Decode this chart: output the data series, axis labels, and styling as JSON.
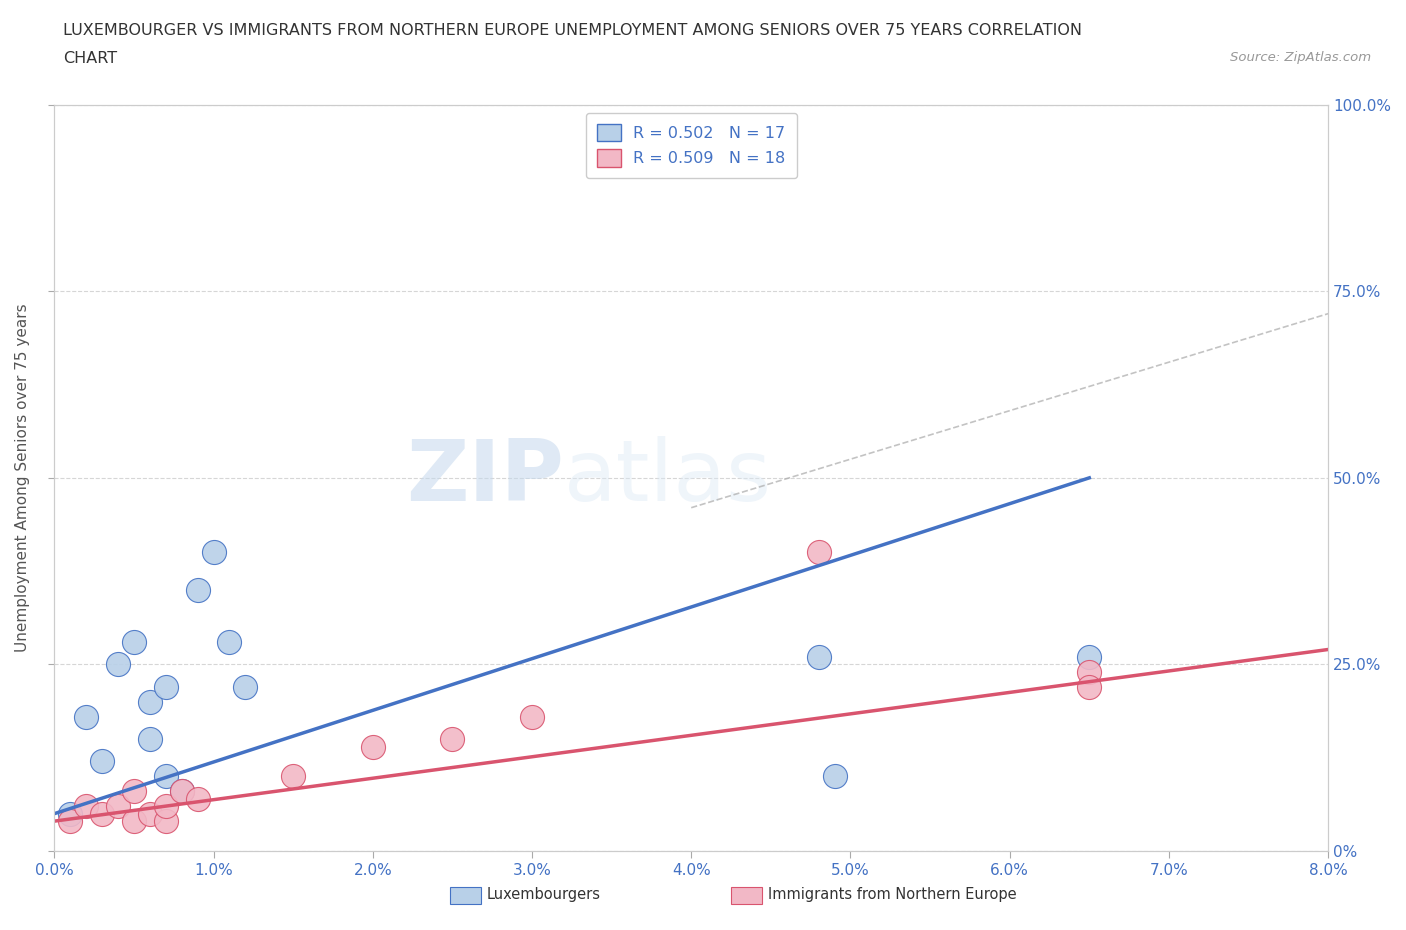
{
  "title_line1": "LUXEMBOURGER VS IMMIGRANTS FROM NORTHERN EUROPE UNEMPLOYMENT AMONG SENIORS OVER 75 YEARS CORRELATION",
  "title_line2": "CHART",
  "source_text": "Source: ZipAtlas.com",
  "ylabel": "Unemployment Among Seniors over 75 years",
  "xlim": [
    0.0,
    0.08
  ],
  "ylim": [
    0.0,
    1.0
  ],
  "xtick_labels": [
    "0.0%",
    "1.0%",
    "2.0%",
    "3.0%",
    "4.0%",
    "5.0%",
    "6.0%",
    "7.0%",
    "8.0%"
  ],
  "xtick_values": [
    0.0,
    0.01,
    0.02,
    0.03,
    0.04,
    0.05,
    0.06,
    0.07,
    0.08
  ],
  "ytick_right_labels": [
    "0%",
    "25.0%",
    "50.0%",
    "75.0%",
    "100.0%"
  ],
  "ytick_values": [
    0.0,
    0.25,
    0.5,
    0.75,
    1.0
  ],
  "legend_r1": "R = 0.502",
  "legend_n1": "N = 17",
  "legend_r2": "R = 0.509",
  "legend_n2": "N = 18",
  "color_blue_fill": "#b8d0e8",
  "color_pink_fill": "#f2b8c6",
  "color_blue_edge": "#4472c4",
  "color_pink_edge": "#d9546e",
  "color_blue_line": "#4472c4",
  "color_pink_line": "#d9546e",
  "color_blue_text": "#4472c4",
  "watermark_zip": "ZIP",
  "watermark_atlas": "atlas",
  "lux_x": [
    0.001,
    0.002,
    0.003,
    0.004,
    0.005,
    0.006,
    0.006,
    0.007,
    0.007,
    0.008,
    0.009,
    0.01,
    0.011,
    0.012,
    0.048,
    0.049,
    0.065
  ],
  "lux_y": [
    0.05,
    0.18,
    0.12,
    0.25,
    0.28,
    0.2,
    0.15,
    0.22,
    0.1,
    0.08,
    0.35,
    0.4,
    0.28,
    0.22,
    0.26,
    0.1,
    0.26
  ],
  "imm_x": [
    0.001,
    0.002,
    0.003,
    0.004,
    0.005,
    0.005,
    0.006,
    0.007,
    0.007,
    0.008,
    0.009,
    0.015,
    0.02,
    0.025,
    0.03,
    0.048,
    0.065,
    0.065
  ],
  "imm_y": [
    0.04,
    0.06,
    0.05,
    0.06,
    0.04,
    0.08,
    0.05,
    0.04,
    0.06,
    0.08,
    0.07,
    0.1,
    0.14,
    0.15,
    0.18,
    0.4,
    0.24,
    0.22
  ],
  "lux_size": 300,
  "imm_size": 300,
  "blue_line_x0": 0.0,
  "blue_line_y0": 0.05,
  "blue_line_x1": 0.065,
  "blue_line_y1": 0.5,
  "pink_line_x0": 0.0,
  "pink_line_y0": 0.04,
  "pink_line_x1": 0.08,
  "pink_line_y1": 0.27,
  "dash_line_x0": 0.04,
  "dash_line_y0": 0.46,
  "dash_line_x1": 0.08,
  "dash_line_y1": 0.72,
  "background_color": "#ffffff",
  "grid_color": "#cccccc"
}
